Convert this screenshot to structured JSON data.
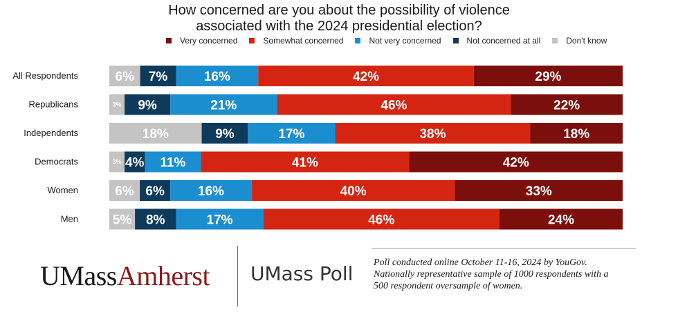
{
  "title": {
    "line1": "How concerned are you about the possibility of violence",
    "line2": "associated with the 2024 presidential election?"
  },
  "legend": [
    {
      "label": "Very concerned",
      "color": "#7b0f0b"
    },
    {
      "label": "Somewhat concerned",
      "color": "#d42512"
    },
    {
      "label": "Not very concerned",
      "color": "#1b8ed0"
    },
    {
      "label": "Not concerned at all",
      "color": "#0e3a5c"
    },
    {
      "label": "Don't know",
      "color": "#c4c4c4"
    }
  ],
  "chart_data": {
    "type": "bar",
    "orientation": "horizontal",
    "stacked": true,
    "categories": [
      "All Respondents",
      "Republicans",
      "Independents",
      "Democrats",
      "Women",
      "Men"
    ],
    "series": [
      {
        "name": "Don't know",
        "values": [
          6,
          3,
          18,
          3,
          6,
          5
        ],
        "labels": [
          "6%",
          "3%",
          "18%",
          "3%",
          "6%",
          "5%"
        ],
        "color": "#c4c4c4"
      },
      {
        "name": "Not concerned at all",
        "values": [
          7,
          9,
          9,
          4,
          6,
          8
        ],
        "labels": [
          "7%",
          "9%",
          "9%",
          "4%",
          "6%",
          "8%"
        ],
        "color": "#0e3a5c"
      },
      {
        "name": "Not very concerned",
        "values": [
          16,
          21,
          17,
          11,
          16,
          17
        ],
        "labels": [
          "16%",
          "21%",
          "17%",
          "11%",
          "16%",
          "17%"
        ],
        "color": "#1b8ed0"
      },
      {
        "name": "Somewhat concerned",
        "values": [
          42,
          46,
          38,
          41,
          40,
          46
        ],
        "labels": [
          "42%",
          "46%",
          "38%",
          "41%",
          "40%",
          "46%"
        ],
        "color": "#d42512"
      },
      {
        "name": "Very concerned",
        "values": [
          29,
          22,
          18,
          42,
          33,
          24
        ],
        "labels": [
          "29%",
          "22%",
          "18%",
          "42%",
          "33%",
          "24%"
        ],
        "color": "#7b0f0b"
      }
    ],
    "xlim": [
      0,
      100
    ],
    "grid": false,
    "legend_position": "top"
  },
  "branding": {
    "logo_part1": "UMass",
    "logo_part2": "Amherst",
    "logo_colors": [
      "#1a1a1a",
      "#881c1c"
    ],
    "poll_name": "UMass Poll"
  },
  "note": {
    "line1": "Poll conducted online October 11-16, 2024 by YouGov.",
    "line2": "Nationally representative sample of 1000 respondents with a",
    "line3": "500 respondent oversample of women."
  }
}
